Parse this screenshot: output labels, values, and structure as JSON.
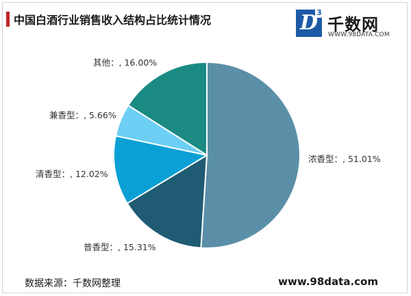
{
  "title": "中国白酒行业销售收入结构占比统计情况",
  "logo": {
    "mark": "D",
    "mark_sup": "3",
    "name": "千数网",
    "url": "WWW.98DATA.COM"
  },
  "source": "数据来源：千数网整理",
  "site": "www.98data.com",
  "chart_data": {
    "type": "pie",
    "start_angle_deg": 0,
    "direction": "clockwise",
    "slices": [
      {
        "name": "浓香型",
        "label": "浓香型：, 51.01%",
        "value": 51.01,
        "color": "#5b8fa8"
      },
      {
        "name": "普香型",
        "label": "普香型：, 15.31%",
        "value": 15.31,
        "color": "#1f5b73"
      },
      {
        "name": "清香型",
        "label": "清香型：, 12.02%",
        "value": 12.02,
        "color": "#0aa0d6"
      },
      {
        "name": "兼香型",
        "label": "兼香型：, 5.66%",
        "value": 5.66,
        "color": "#6dcff4"
      },
      {
        "name": "其他",
        "label": "其他：, 16.00%",
        "value": 16.0,
        "color": "#1a8a82"
      }
    ]
  }
}
